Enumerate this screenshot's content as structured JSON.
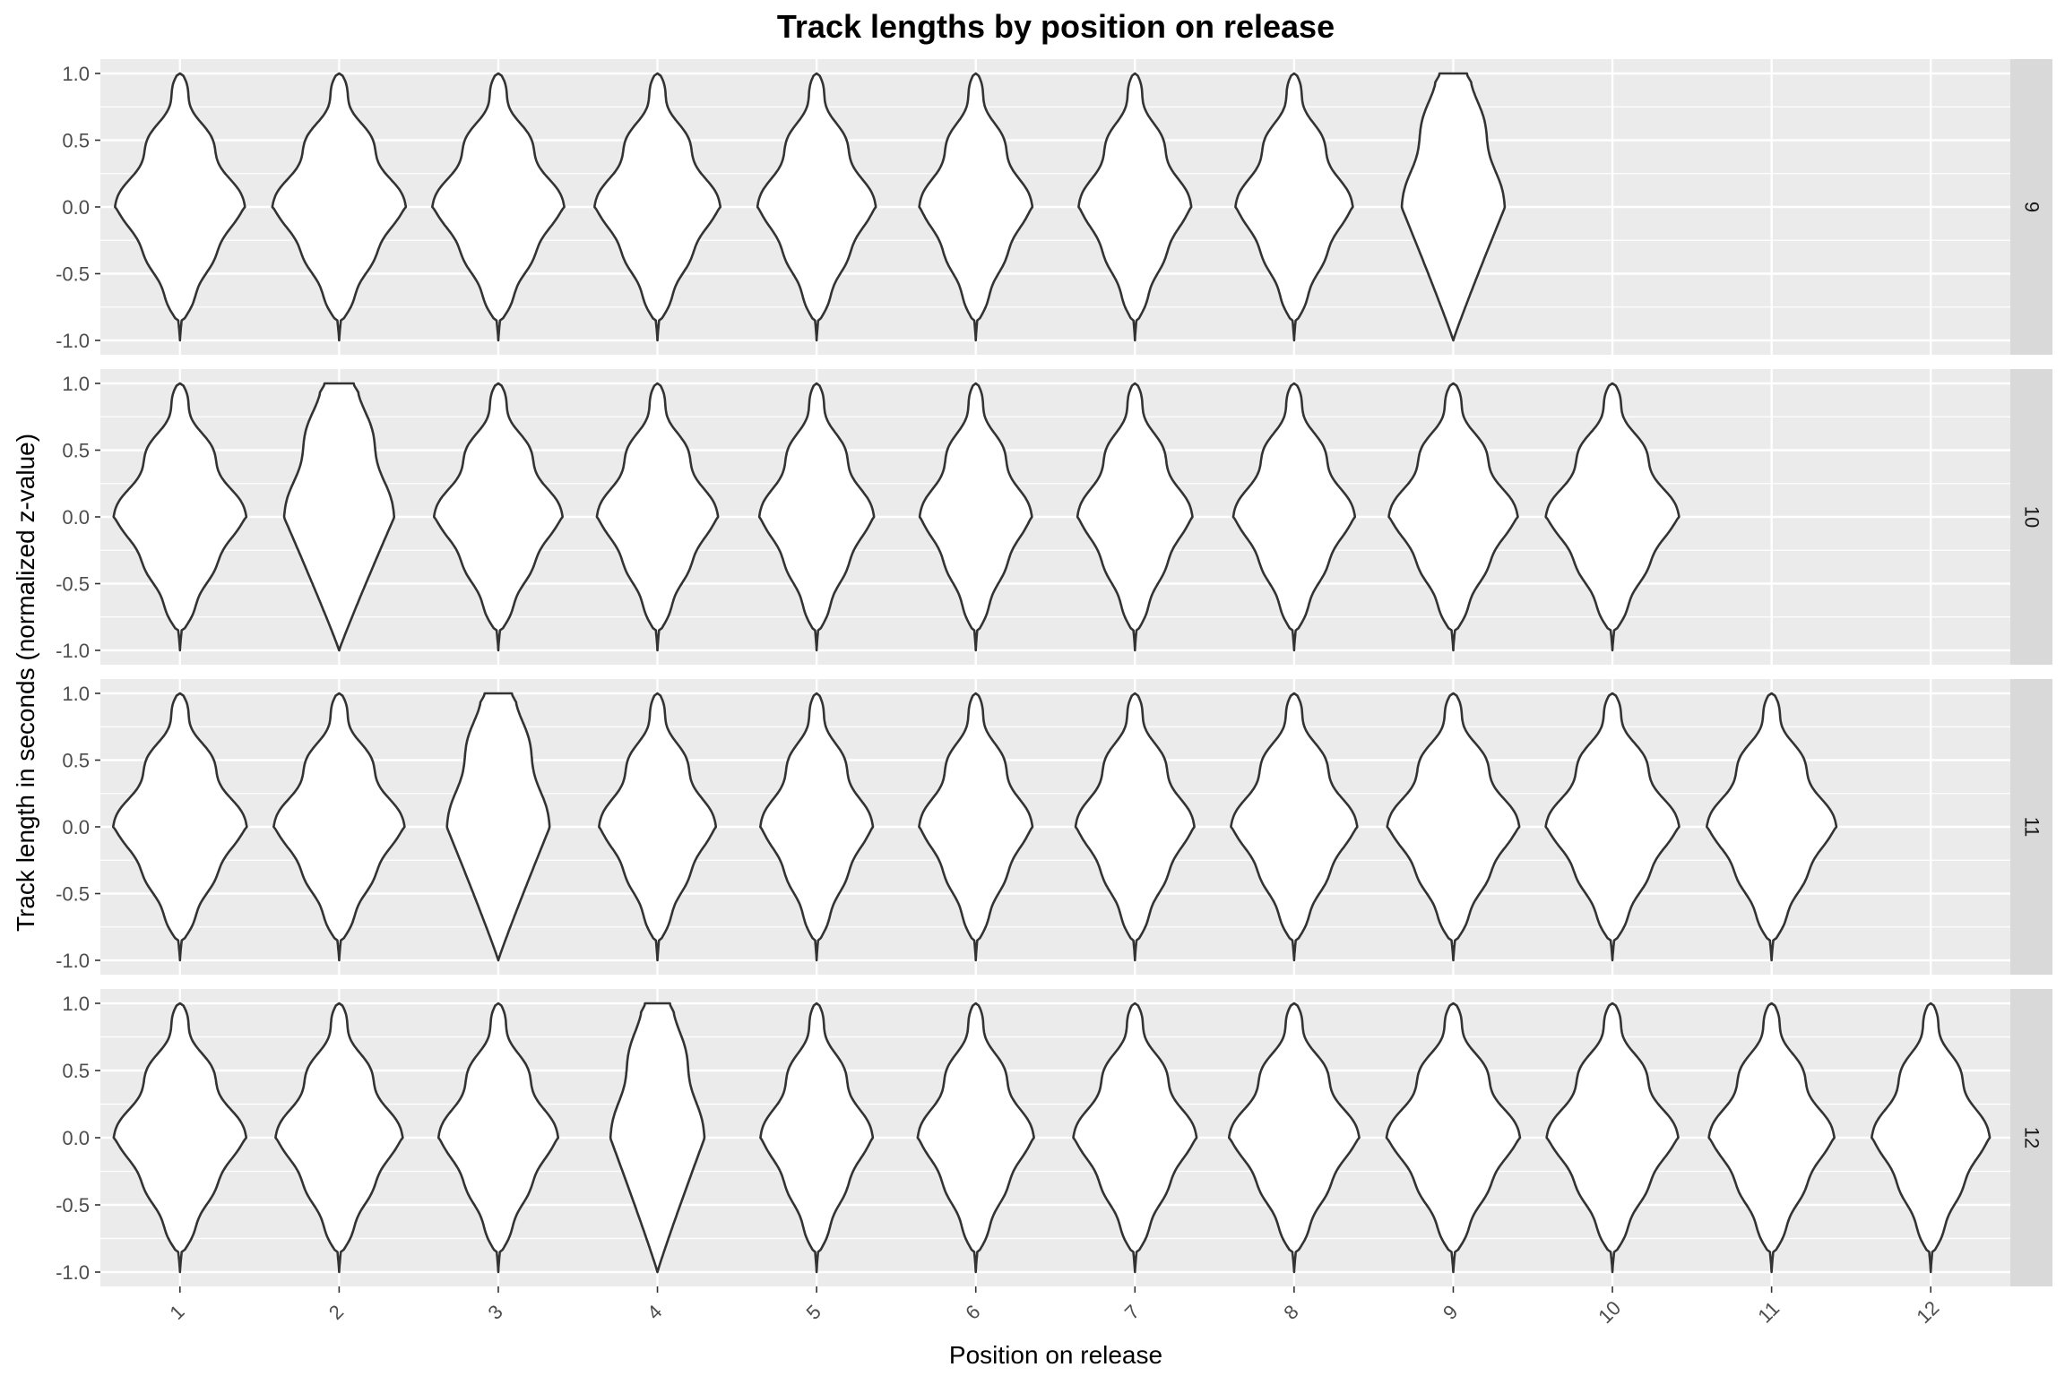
{
  "chart_data": {
    "type": "violin",
    "title": "Track lengths by position on release",
    "xlabel": "Position on release",
    "ylabel": "Track length in seconds (normalized z-value)",
    "x_categories": [
      "1",
      "2",
      "3",
      "4",
      "5",
      "6",
      "7",
      "8",
      "9",
      "10",
      "11",
      "12"
    ],
    "ylim": [
      -1.0,
      1.0
    ],
    "y_ticks": [
      "1.0",
      "0.5",
      "0.0",
      "-0.5",
      "-1.0"
    ],
    "y_tick_values": [
      1.0,
      0.5,
      0.0,
      -0.5,
      -1.0
    ],
    "facet_variable": "number of tracks on release",
    "facets": [
      {
        "label": "9",
        "positions": [
          1,
          2,
          3,
          4,
          5,
          6,
          7,
          8,
          9
        ],
        "flat_top_positions": [
          9
        ]
      },
      {
        "label": "10",
        "positions": [
          1,
          2,
          3,
          4,
          5,
          6,
          7,
          8,
          9,
          10
        ],
        "flat_top_positions": [
          2
        ]
      },
      {
        "label": "11",
        "positions": [
          1,
          2,
          3,
          4,
          5,
          6,
          7,
          8,
          9,
          10,
          11
        ],
        "flat_top_positions": [
          3
        ]
      },
      {
        "label": "12",
        "positions": [
          1,
          2,
          3,
          4,
          5,
          6,
          7,
          8,
          9,
          10,
          11,
          12
        ],
        "flat_top_positions": [
          4
        ]
      }
    ],
    "violin_fill": "#ffffff",
    "violin_stroke": "#333333",
    "panel_background": "#ebebeb",
    "strip_background": "#d9d9d9",
    "grid_color": "#ffffff",
    "grid": true,
    "legend": "none"
  }
}
